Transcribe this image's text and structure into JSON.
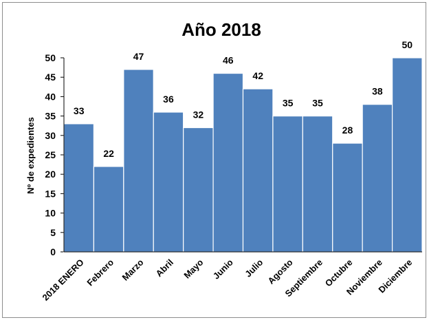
{
  "chart_data": {
    "type": "bar",
    "title": "Año 2018",
    "xlabel": "",
    "ylabel": "Nº de expedientes",
    "categories": [
      "2018 ENERO",
      "Febrero",
      "Marzo",
      "Abril",
      "Mayo",
      "Junio",
      "Julio",
      "Agosto",
      "Septiembre",
      "Octubre",
      "Noviembre",
      "Diciembre"
    ],
    "values": [
      33,
      22,
      47,
      36,
      32,
      46,
      42,
      35,
      35,
      28,
      38,
      50
    ],
    "ylim": [
      0,
      50
    ],
    "yticks": [
      0,
      5,
      10,
      15,
      20,
      25,
      30,
      35,
      40,
      45,
      50
    ],
    "grid": false,
    "legend": "none",
    "bar_color": "#4f81bd",
    "data_labels": true
  }
}
